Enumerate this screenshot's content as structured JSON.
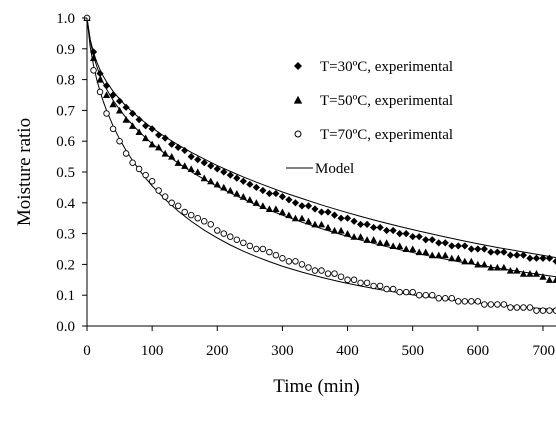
{
  "chart_data": {
    "type": "scatter",
    "title": "",
    "xlabel": "Time (min)",
    "ylabel": "Moisture ratio",
    "xlim": [
      0,
      720
    ],
    "ylim": [
      0,
      1.0
    ],
    "x_ticks": [
      "0",
      "100",
      "200",
      "300",
      "400",
      "500",
      "600",
      "700"
    ],
    "y_ticks": [
      "0.0",
      "0.1",
      "0.2",
      "0.3",
      "0.4",
      "0.5",
      "0.6",
      "0.7",
      "0.8",
      "0.9",
      "1.0"
    ],
    "legend_position": "top-right",
    "grid": false,
    "series": [
      {
        "name": "T=30ºC, experimental",
        "marker": "diamond",
        "x": [
          0,
          10,
          20,
          30,
          40,
          50,
          60,
          70,
          80,
          90,
          100,
          110,
          120,
          130,
          140,
          150,
          160,
          170,
          180,
          190,
          200,
          210,
          220,
          230,
          240,
          250,
          260,
          270,
          280,
          290,
          300,
          310,
          320,
          330,
          340,
          350,
          360,
          370,
          380,
          390,
          400,
          410,
          420,
          430,
          440,
          450,
          460,
          470,
          480,
          490,
          500,
          510,
          520,
          530,
          540,
          550,
          560,
          570,
          580,
          590,
          600,
          610,
          620,
          630,
          640,
          650,
          660,
          670,
          680,
          690,
          700,
          710,
          720
        ],
        "y": [
          1.0,
          0.89,
          0.82,
          0.78,
          0.75,
          0.73,
          0.71,
          0.69,
          0.67,
          0.65,
          0.64,
          0.62,
          0.61,
          0.59,
          0.58,
          0.57,
          0.55,
          0.54,
          0.53,
          0.52,
          0.51,
          0.5,
          0.49,
          0.48,
          0.47,
          0.46,
          0.45,
          0.44,
          0.43,
          0.43,
          0.42,
          0.41,
          0.4,
          0.39,
          0.39,
          0.38,
          0.37,
          0.37,
          0.36,
          0.35,
          0.35,
          0.34,
          0.33,
          0.33,
          0.32,
          0.32,
          0.31,
          0.31,
          0.3,
          0.3,
          0.29,
          0.29,
          0.28,
          0.28,
          0.27,
          0.27,
          0.26,
          0.26,
          0.26,
          0.25,
          0.25,
          0.25,
          0.24,
          0.24,
          0.24,
          0.23,
          0.23,
          0.23,
          0.22,
          0.22,
          0.22,
          0.22,
          0.21
        ]
      },
      {
        "name": "T=50ºC, experimental",
        "marker": "triangle",
        "x": [
          0,
          10,
          20,
          30,
          40,
          50,
          60,
          70,
          80,
          90,
          100,
          110,
          120,
          130,
          140,
          150,
          160,
          170,
          180,
          190,
          200,
          210,
          220,
          230,
          240,
          250,
          260,
          270,
          280,
          290,
          300,
          310,
          320,
          330,
          340,
          350,
          360,
          370,
          380,
          390,
          400,
          410,
          420,
          430,
          440,
          450,
          460,
          470,
          480,
          490,
          500,
          510,
          520,
          530,
          540,
          550,
          560,
          570,
          580,
          590,
          600,
          610,
          620,
          630,
          640,
          650,
          660,
          670,
          680,
          690,
          700,
          710,
          720
        ],
        "y": [
          1.0,
          0.87,
          0.8,
          0.75,
          0.72,
          0.7,
          0.67,
          0.65,
          0.63,
          0.61,
          0.59,
          0.58,
          0.56,
          0.55,
          0.53,
          0.52,
          0.51,
          0.5,
          0.48,
          0.47,
          0.46,
          0.45,
          0.44,
          0.43,
          0.42,
          0.41,
          0.4,
          0.39,
          0.38,
          0.38,
          0.37,
          0.36,
          0.35,
          0.35,
          0.34,
          0.33,
          0.33,
          0.32,
          0.31,
          0.31,
          0.3,
          0.29,
          0.29,
          0.28,
          0.28,
          0.27,
          0.27,
          0.26,
          0.26,
          0.25,
          0.25,
          0.24,
          0.24,
          0.23,
          0.23,
          0.23,
          0.22,
          0.22,
          0.21,
          0.21,
          0.2,
          0.2,
          0.19,
          0.19,
          0.19,
          0.18,
          0.18,
          0.17,
          0.17,
          0.17,
          0.16,
          0.15,
          0.15
        ]
      },
      {
        "name": "T=70ºC, experimental",
        "marker": "circle-open",
        "x": [
          0,
          10,
          20,
          30,
          40,
          50,
          60,
          70,
          80,
          90,
          100,
          110,
          120,
          130,
          140,
          150,
          160,
          170,
          180,
          190,
          200,
          210,
          220,
          230,
          240,
          250,
          260,
          270,
          280,
          290,
          300,
          310,
          320,
          330,
          340,
          350,
          360,
          370,
          380,
          390,
          400,
          410,
          420,
          430,
          440,
          450,
          460,
          470,
          480,
          490,
          500,
          510,
          520,
          530,
          540,
          550,
          560,
          570,
          580,
          590,
          600,
          610,
          620,
          630,
          640,
          650,
          660,
          670,
          680,
          690,
          700,
          710,
          720
        ],
        "y": [
          1.0,
          0.83,
          0.76,
          0.69,
          0.64,
          0.6,
          0.56,
          0.53,
          0.51,
          0.49,
          0.47,
          0.44,
          0.42,
          0.4,
          0.39,
          0.37,
          0.36,
          0.35,
          0.34,
          0.33,
          0.31,
          0.3,
          0.29,
          0.28,
          0.27,
          0.26,
          0.25,
          0.25,
          0.24,
          0.23,
          0.22,
          0.21,
          0.21,
          0.2,
          0.19,
          0.18,
          0.18,
          0.17,
          0.17,
          0.16,
          0.15,
          0.15,
          0.14,
          0.14,
          0.13,
          0.13,
          0.12,
          0.12,
          0.11,
          0.11,
          0.11,
          0.1,
          0.1,
          0.1,
          0.09,
          0.09,
          0.09,
          0.08,
          0.08,
          0.08,
          0.08,
          0.07,
          0.07,
          0.07,
          0.07,
          0.06,
          0.06,
          0.06,
          0.06,
          0.05,
          0.05,
          0.05,
          0.05
        ]
      },
      {
        "name": "Model",
        "style": "line",
        "curves": [
          {
            "x": [
              0,
              5,
              10,
              15,
              20,
              25,
              30,
              40,
              50,
              60,
              70,
              80,
              90,
              100,
              120,
              140,
              160,
              180,
              200,
              220,
              240,
              260,
              280,
              300,
              330,
              360,
              390,
              420,
              450,
              480,
              510,
              540,
              570,
              600,
              630,
              660,
              690,
              720
            ],
            "y": [
              1.0,
              0.93,
              0.888,
              0.857,
              0.832,
              0.811,
              0.793,
              0.762,
              0.737,
              0.714,
              0.694,
              0.676,
              0.659,
              0.643,
              0.614,
              0.588,
              0.564,
              0.542,
              0.521,
              0.502,
              0.484,
              0.467,
              0.451,
              0.435,
              0.414,
              0.393,
              0.374,
              0.356,
              0.339,
              0.323,
              0.308,
              0.294,
              0.28,
              0.267,
              0.255,
              0.244,
              0.233,
              0.222
            ]
          },
          {
            "x": [
              0,
              5,
              10,
              15,
              20,
              25,
              30,
              40,
              50,
              60,
              70,
              80,
              90,
              100,
              120,
              140,
              160,
              180,
              200,
              220,
              240,
              260,
              280,
              300,
              330,
              360,
              390,
              420,
              450,
              480,
              510,
              540,
              570,
              600,
              630,
              660,
              690,
              720
            ],
            "y": [
              1.0,
              0.925,
              0.878,
              0.843,
              0.814,
              0.79,
              0.769,
              0.733,
              0.703,
              0.676,
              0.653,
              0.631,
              0.611,
              0.592,
              0.559,
              0.529,
              0.501,
              0.476,
              0.453,
              0.432,
              0.412,
              0.393,
              0.376,
              0.36,
              0.337,
              0.316,
              0.297,
              0.279,
              0.263,
              0.248,
              0.234,
              0.221,
              0.209,
              0.198,
              0.188,
              0.178,
              0.169,
              0.16
            ]
          },
          {
            "x": [
              0,
              5,
              10,
              15,
              20,
              25,
              30,
              40,
              50,
              60,
              70,
              80,
              90,
              100,
              120,
              140,
              160,
              180,
              200,
              220,
              240,
              260,
              280,
              300,
              330,
              360,
              390,
              420,
              450,
              480,
              510,
              540,
              570,
              600,
              630,
              660,
              690,
              720
            ],
            "y": [
              1.0,
              0.905,
              0.846,
              0.8,
              0.762,
              0.729,
              0.7,
              0.65,
              0.607,
              0.57,
              0.537,
              0.507,
              0.48,
              0.455,
              0.411,
              0.373,
              0.34,
              0.311,
              0.286,
              0.263,
              0.243,
              0.225,
              0.209,
              0.194,
              0.175,
              0.158,
              0.143,
              0.13,
              0.118,
              0.108,
              0.098,
              0.09,
              0.082,
              0.075,
              0.069,
              0.063,
              0.058,
              0.053
            ]
          }
        ]
      }
    ]
  }
}
